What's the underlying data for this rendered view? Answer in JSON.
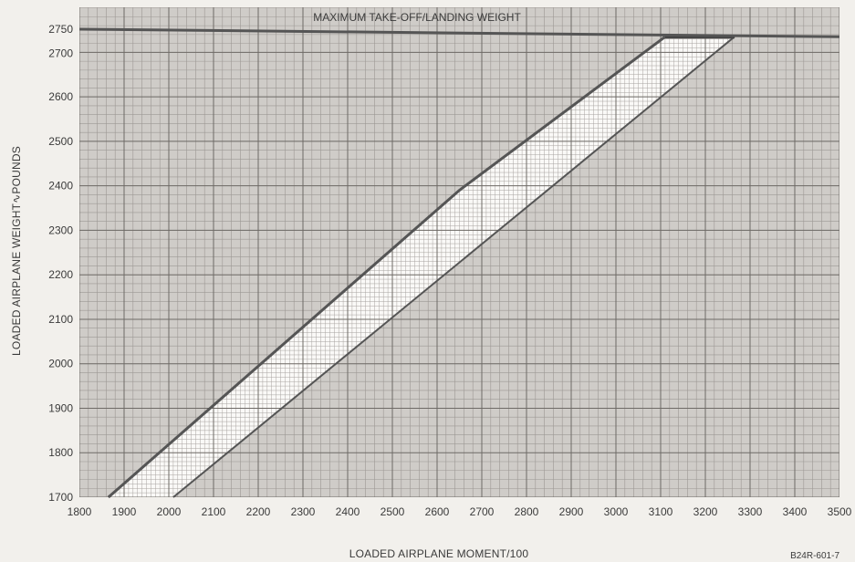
{
  "chart_data": {
    "type": "area",
    "xlabel": "LOADED AIRPLANE MOMENT/100",
    "ylabel": "LOADED AIRPLANE WEIGHT∿POUNDS",
    "xlim": [
      1800,
      3500
    ],
    "ylim": [
      1700,
      2750
    ],
    "x_ticks": [
      1800,
      1900,
      2000,
      2100,
      2200,
      2300,
      2400,
      2500,
      2600,
      2700,
      2800,
      2900,
      3000,
      3100,
      3200,
      3300,
      3400,
      3500
    ],
    "y_ticks": [
      1700,
      1800,
      1900,
      2000,
      2100,
      2200,
      2300,
      2400,
      2500,
      2600,
      2700,
      2750
    ],
    "grid": true,
    "envelope": {
      "forward_limit": [
        {
          "x": 1865,
          "y": 1700
        },
        {
          "x": 2650,
          "y": 2390
        },
        {
          "x": 3110,
          "y": 2735
        }
      ],
      "aft_limit": [
        {
          "x": 2010,
          "y": 1700
        },
        {
          "x": 3265,
          "y": 2735
        }
      ],
      "top_limit": [
        {
          "x": 3110,
          "y": 2735
        },
        {
          "x": 3265,
          "y": 2735
        }
      ]
    },
    "reference_lines": [
      {
        "label": "MAXIMUM TAKE-OFF/LANDING WEIGHT",
        "points": [
          {
            "x": 1800,
            "y": 2752
          },
          {
            "x": 3500,
            "y": 2735
          }
        ]
      }
    ],
    "figure_id": "B24R-601-7"
  }
}
